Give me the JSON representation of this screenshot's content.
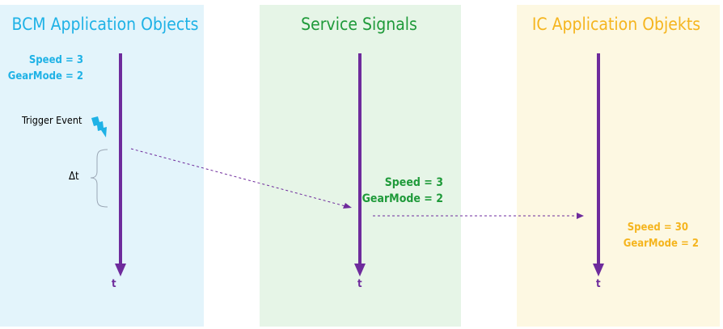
{
  "colors": {
    "bcm_text": "#1fb2e6",
    "bcm_bg": "#e3f4fb",
    "service_text": "#1f9a3a",
    "service_bg": "#e6f5e7",
    "ic_text": "#f5b51f",
    "ic_bg": "#fdf8e2",
    "timeline": "#6e2b9c",
    "lightning": "#1fb2e6"
  },
  "lanes": {
    "bcm": {
      "title": "BCM Application Objects",
      "values": [
        "Speed = 3",
        "GearMode = 2"
      ],
      "time_label": "t",
      "trigger_label": "Trigger Event",
      "delta_label": "Δt"
    },
    "service": {
      "title": "Service Signals",
      "values": [
        "Speed = 3",
        "GearMode = 2"
      ],
      "time_label": "t"
    },
    "ic": {
      "title": "IC Application Objekts",
      "values": [
        "Speed = 30",
        "GearMode = 2"
      ],
      "time_label": "t"
    }
  }
}
